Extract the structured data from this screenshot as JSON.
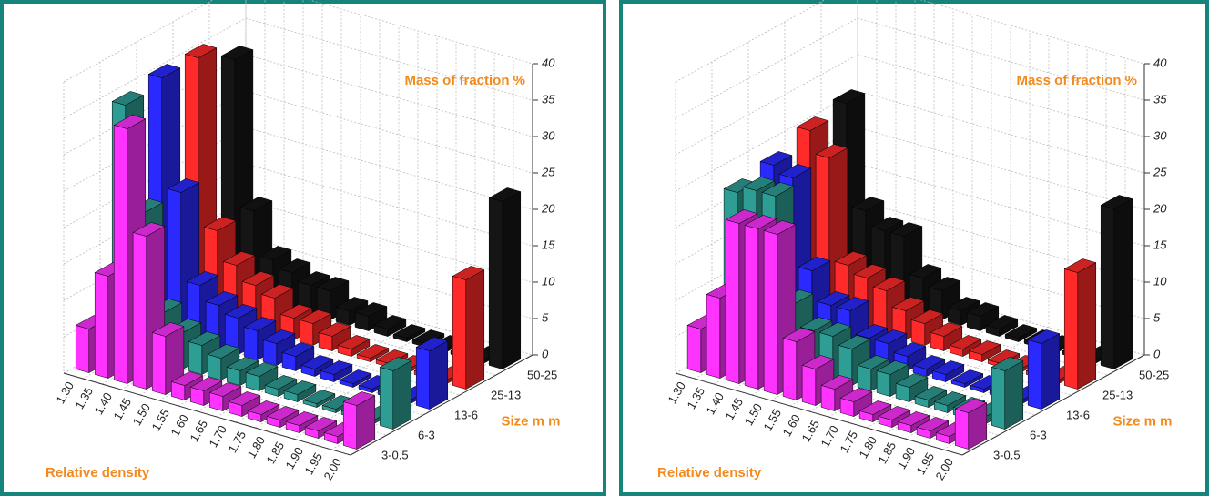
{
  "chart_data": [
    {
      "type": "bar3d",
      "x_label": "Relative density",
      "y_label": "Size m m",
      "z_label": "Mass of fraction %",
      "categories": [
        "1.30",
        "1.35",
        "1.40",
        "1.45",
        "1.50",
        "1.55",
        "1.60",
        "1.65",
        "1.70",
        "1.75",
        "1.80",
        "1.85",
        "1.90",
        "1.95",
        "2.00"
      ],
      "zlim": [
        0,
        40
      ],
      "zticks": [
        0,
        5,
        10,
        15,
        20,
        25,
        30,
        35,
        40
      ],
      "grid": true,
      "series": [
        {
          "name": "3-0.5",
          "color": "#ff33ff",
          "values": [
            6,
            14,
            35,
            21,
            8,
            2,
            2,
            2,
            1.5,
            1,
            1,
            1,
            1,
            1,
            6
          ]
        },
        {
          "name": "6-3",
          "color": "#2e9e95",
          "values": [
            34,
            20,
            7,
            5,
            4,
            3,
            2,
            2,
            1,
            1,
            0.5,
            0.5,
            0.5,
            0.5,
            8
          ]
        },
        {
          "name": "13-6",
          "color": "#2a2aff",
          "values": [
            35,
            20,
            8,
            6,
            5,
            4,
            3,
            2,
            1,
            1,
            0.5,
            0.5,
            0.5,
            0.5,
            8
          ]
        },
        {
          "name": "25-13",
          "color": "#ff2a2a",
          "values": [
            35,
            12,
            8,
            6,
            5,
            3,
            3,
            2,
            1,
            0.5,
            0.5,
            0.5,
            0.5,
            0.5,
            15
          ]
        },
        {
          "name": "50-25",
          "color": "#151515",
          "values": [
            32,
            12,
            6,
            5,
            4,
            4,
            2,
            2,
            1,
            0.5,
            0.5,
            0.5,
            0.5,
            0.5,
            23
          ]
        }
      ]
    },
    {
      "type": "bar3d",
      "x_label": "Relative density",
      "y_label": "Size m m",
      "z_label": "Mass of fraction %",
      "categories": [
        "1.30",
        "1.35",
        "1.40",
        "1.45",
        "1.50",
        "1.55",
        "1.60",
        "1.65",
        "1.70",
        "1.75",
        "1.80",
        "1.85",
        "1.90",
        "1.95",
        "2.00"
      ],
      "zlim": [
        0,
        40
      ],
      "zticks": [
        0,
        5,
        10,
        15,
        20,
        25,
        30,
        35,
        40
      ],
      "grid": true,
      "series": [
        {
          "name": "3-0.5",
          "color": "#ff33ff",
          "values": [
            6,
            11,
            22,
            22,
            22,
            8,
            5,
            3,
            2,
            1,
            1,
            1,
            1,
            1,
            5
          ]
        },
        {
          "name": "6-3",
          "color": "#2e9e95",
          "values": [
            22,
            23,
            23,
            9,
            6,
            6,
            5,
            3,
            3,
            2,
            1,
            1,
            1,
            1,
            8
          ]
        },
        {
          "name": "13-6",
          "color": "#2a2aff",
          "values": [
            23,
            22,
            10,
            6,
            6,
            3,
            3,
            2,
            1,
            1,
            0.5,
            0.5,
            0.5,
            0.5,
            9
          ]
        },
        {
          "name": "25-13",
          "color": "#ff2a2a",
          "values": [
            25,
            22,
            8,
            7,
            6,
            4,
            3,
            2,
            1,
            1,
            0.5,
            0.5,
            0.5,
            0.5,
            16
          ]
        },
        {
          "name": "50-25",
          "color": "#151515",
          "values": [
            26,
            12,
            10,
            10,
            5,
            4,
            2,
            2,
            1,
            0.5,
            0.5,
            0.5,
            0.5,
            0.5,
            22
          ]
        }
      ]
    }
  ]
}
